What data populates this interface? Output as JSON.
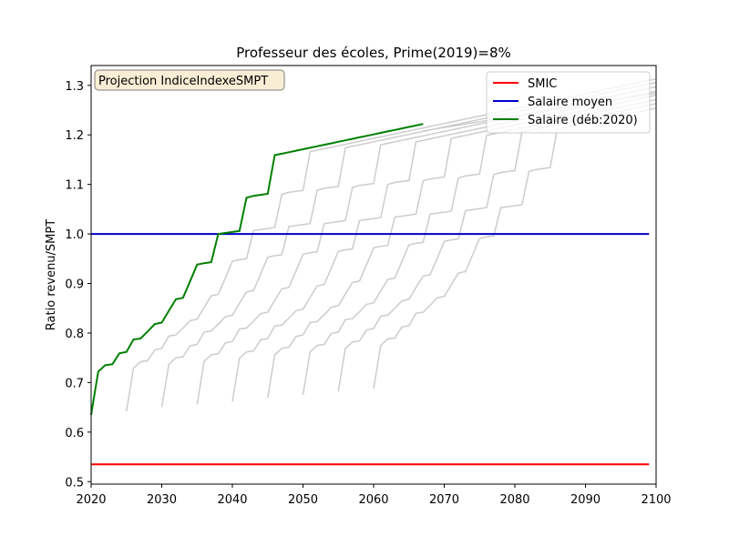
{
  "chart_data": {
    "type": "line",
    "title": "Professeur des écoles, Prime(2019)=8%",
    "xlabel": "",
    "ylabel": "Ratio revenu/SMPT",
    "xlim": [
      2020,
      2100
    ],
    "ylim": [
      0.495,
      1.34
    ],
    "xticks": [
      2020,
      2030,
      2040,
      2050,
      2060,
      2070,
      2080,
      2090,
      2100
    ],
    "yticks": [
      0.5,
      0.6,
      0.7,
      0.8,
      0.9,
      1.0,
      1.1,
      1.2,
      1.3
    ],
    "ytick_labels": [
      "0.5",
      "0.6",
      "0.7",
      "0.8",
      "0.9",
      "1.0",
      "1.1",
      "1.2",
      "1.3"
    ],
    "grid": false,
    "legend_position": "top-right",
    "annotation": "Projection IndiceIndexeSMPT",
    "series": [
      {
        "name": "SMIC",
        "color": "#ff0000",
        "x": [
          2020,
          2099
        ],
        "y": [
          0.535,
          0.535
        ]
      },
      {
        "name": "Salaire moyen",
        "color": "#0000cc",
        "x": [
          2020,
          2099
        ],
        "y": [
          1.0,
          1.0
        ]
      },
      {
        "name": "Salaire (déb:2020)",
        "color": "#008000",
        "x": [
          2020,
          2021,
          2022,
          2023,
          2024,
          2025,
          2026,
          2027,
          2028,
          2029,
          2030,
          2031,
          2032,
          2033,
          2034,
          2035,
          2036,
          2037,
          2038,
          2039,
          2040,
          2041,
          2042,
          2043,
          2044,
          2045,
          2046,
          2047,
          2048,
          2049,
          2050,
          2051,
          2052,
          2053,
          2054,
          2055,
          2056,
          2057,
          2058,
          2059,
          2060,
          2061,
          2062,
          2063,
          2064,
          2065,
          2066,
          2067
        ],
        "y": [
          0.635,
          0.722,
          0.735,
          0.737,
          0.759,
          0.762,
          0.787,
          0.789,
          0.803,
          0.818,
          0.821,
          0.845,
          0.868,
          0.871,
          0.904,
          0.938,
          0.941,
          0.943,
          1.0,
          1.002,
          1.004,
          1.006,
          1.073,
          1.077,
          1.079,
          1.081,
          1.159,
          1.162,
          1.165,
          1.168,
          1.171,
          1.174,
          1.177,
          1.18,
          1.183,
          1.186,
          1.189,
          1.192,
          1.195,
          1.198,
          1.201,
          1.204,
          1.207,
          1.21,
          1.213,
          1.216,
          1.219,
          1.222
        ]
      }
    ],
    "background_series": {
      "color": "#cccccc",
      "start_years": [
        2025,
        2030,
        2035,
        2040,
        2045,
        2050,
        2055,
        2060
      ],
      "start_values": [
        0.642,
        0.65,
        0.656,
        0.662,
        0.669,
        0.675,
        0.682,
        0.688
      ],
      "ratio_step_per_year": 0.003
    },
    "continuation": {
      "color": "#cccccc",
      "x": [
        2067,
        2100
      ],
      "y": [
        1.208,
        1.284
      ]
    }
  }
}
